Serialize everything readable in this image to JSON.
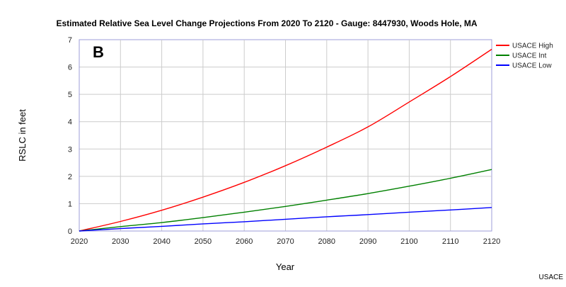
{
  "panel_letter": "B",
  "credit": "USACE",
  "chart_data": {
    "type": "line",
    "title": "Estimated Relative Sea Level Change Projections From 2020 To 2120 - Gauge: 8447930, Woods Hole, MA",
    "xlabel": "Year",
    "ylabel": "RSLC in feet",
    "xlim": [
      2020,
      2120
    ],
    "ylim": [
      0,
      7
    ],
    "x_ticks": [
      2020,
      2030,
      2040,
      2050,
      2060,
      2070,
      2080,
      2090,
      2100,
      2110,
      2120
    ],
    "y_ticks": [
      0,
      1,
      2,
      3,
      4,
      5,
      6,
      7
    ],
    "grid": true,
    "legend_position": "right",
    "x": [
      2020,
      2030,
      2040,
      2050,
      2060,
      2070,
      2080,
      2090,
      2100,
      2110,
      2120
    ],
    "series": [
      {
        "name": "USACE High",
        "color": "#ff0000",
        "values": [
          0.0,
          0.35,
          0.76,
          1.24,
          1.78,
          2.39,
          3.07,
          3.81,
          4.72,
          5.65,
          6.65
        ]
      },
      {
        "name": "USACE Int",
        "color": "#008000",
        "values": [
          0.0,
          0.16,
          0.31,
          0.49,
          0.69,
          0.9,
          1.13,
          1.37,
          1.64,
          1.93,
          2.25
        ]
      },
      {
        "name": "USACE Low",
        "color": "#0000ff",
        "values": [
          0.0,
          0.09,
          0.17,
          0.26,
          0.34,
          0.43,
          0.52,
          0.6,
          0.69,
          0.77,
          0.86
        ]
      }
    ]
  }
}
